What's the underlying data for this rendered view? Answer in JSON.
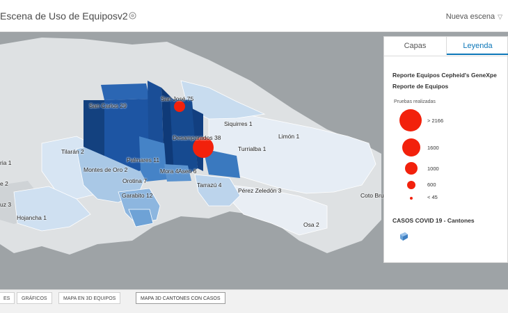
{
  "header": {
    "title": "Escena de Uso de Equiposv2",
    "scene_select": "Nueva escena"
  },
  "panel": {
    "tabs": [
      "Capas",
      "Leyenda"
    ],
    "active_tab": "Leyenda",
    "legend": {
      "layer1_title": "Reporte Equipos Cepheid's GeneXpe",
      "layer1_subtitle": "Reporte de Equipos",
      "field_label": "Pruebas realizadas",
      "classes": [
        "> 2166",
        "1600",
        "1000",
        "600",
        "< 45"
      ],
      "layer2_title": "CASOS COVID 19 - Cantones"
    }
  },
  "map": {
    "labels": [
      "San José 75",
      "San Carlos 29",
      "Siquirres 1",
      "Desamparados 38",
      "Limón 1",
      "Turrialba 1",
      "Tilarán 2",
      "Palmares 11",
      "Montes de Oro 2",
      "Mora 4",
      "Asen 6",
      "Orotina 7",
      "Tarrazú 4",
      "Pérez Zeledón 3",
      "Garabito 12",
      "Coto Bru",
      "Hojancha 1",
      "Osa 2",
      "ria 1",
      "e 2",
      "uz 3"
    ]
  },
  "bottom_tabs": [
    "ES",
    "GRÁFICOS",
    "MAPA EN 3D EQUIPOS",
    "MAPA 3D CANTONES CON CASOS"
  ],
  "bottom_active": "MAPA 3D CANTONES CON CASOS",
  "colors": {
    "accent": "#0b76b8",
    "point": "#f2210c",
    "dark_blue": "#16478f",
    "mid_blue": "#3d7fc4",
    "light_blue": "#c5d9ee",
    "land": "#dee1e3",
    "sea": "#9ea3a6"
  }
}
